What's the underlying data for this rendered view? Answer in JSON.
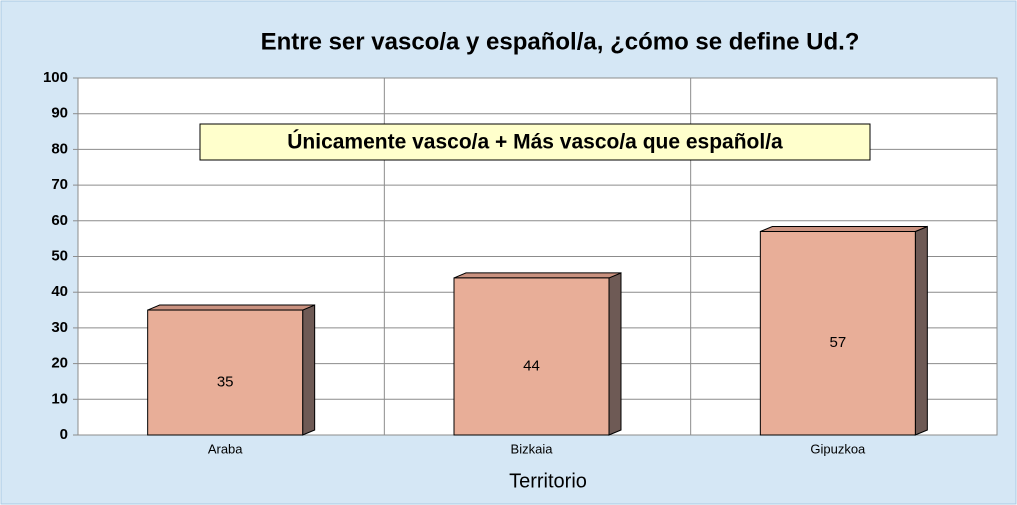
{
  "chart_data": {
    "type": "bar",
    "title": "Entre ser vasco/a y español/a, ¿cómo se define Ud.?",
    "annotation": "Únicamente vasco/a + Más vasco/a que español/a",
    "x_label": "Territorio",
    "categories": [
      "Araba",
      "Bizkaia",
      "Gipuzkoa"
    ],
    "values": [
      35,
      44,
      57
    ],
    "color": "#e8ae98",
    "ylim": [
      0,
      100
    ],
    "yticks": [
      0,
      10,
      20,
      30,
      40,
      50,
      60,
      70,
      80,
      90,
      100
    ],
    "grid": true
  }
}
